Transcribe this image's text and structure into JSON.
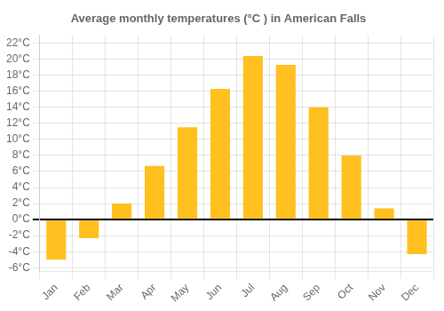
{
  "chart_data": {
    "type": "bar",
    "title": "Average monthly temperatures (°C ) in American Falls",
    "categories": [
      "Jan",
      "Feb",
      "Mar",
      "Apr",
      "May",
      "Jun",
      "Jul",
      "Aug",
      "Sep",
      "Oct",
      "Nov",
      "Dec"
    ],
    "values": [
      -5.0,
      -2.3,
      2.0,
      6.7,
      11.5,
      16.3,
      20.4,
      19.3,
      14.0,
      8.0,
      1.4,
      -4.3
    ],
    "color": "#FFC020",
    "ylim": [
      -6.5,
      23
    ],
    "yticks": [
      {
        "value": -6,
        "label": "-6°C"
      },
      {
        "value": -4,
        "label": "-4°C"
      },
      {
        "value": -2,
        "label": "-2°C"
      },
      {
        "value": 0,
        "label": "0°C"
      },
      {
        "value": 2,
        "label": "2°C"
      },
      {
        "value": 4,
        "label": "4°C"
      },
      {
        "value": 6,
        "label": "6°C"
      },
      {
        "value": 8,
        "label": "8°C"
      },
      {
        "value": 10,
        "label": "10°C"
      },
      {
        "value": 12,
        "label": "12°C"
      },
      {
        "value": 14,
        "label": "14°C"
      },
      {
        "value": 16,
        "label": "16°C"
      },
      {
        "value": 18,
        "label": "18°C"
      },
      {
        "value": 20,
        "label": "20°C"
      },
      {
        "value": 22,
        "label": "22°C"
      }
    ],
    "grid": true
  }
}
